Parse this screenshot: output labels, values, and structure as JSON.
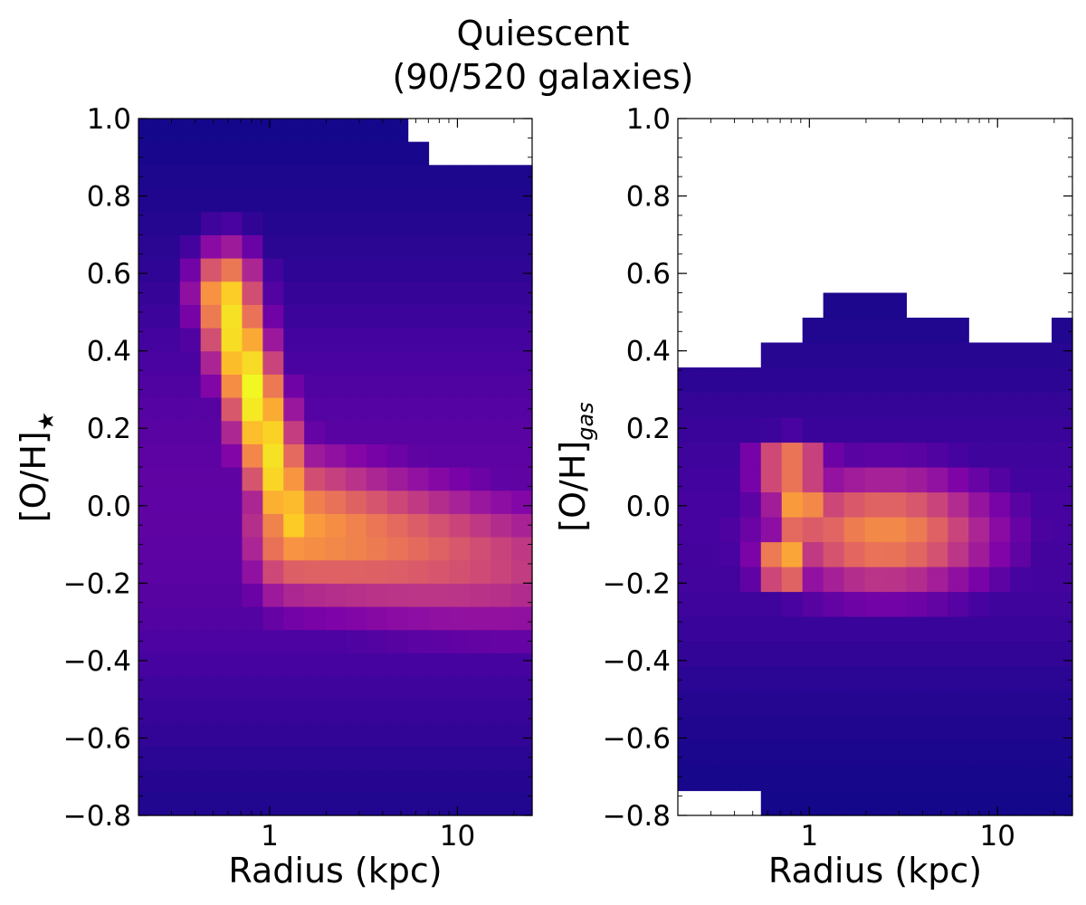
{
  "figure": {
    "title_line1": "Quiescent",
    "title_line2": "(90/520 galaxies)"
  },
  "chart_data": [
    {
      "type": "heatmap",
      "xlabel": "Radius (kpc)",
      "ylabel": "[O/H]",
      "ylabel_subscript": "★",
      "xscale": "log",
      "xlim": [
        0.2,
        25
      ],
      "ylim": [
        -0.8,
        1.0
      ],
      "x_ticks": [
        {
          "value": 1,
          "label": "1"
        },
        {
          "value": 10,
          "label": "10"
        }
      ],
      "y_ticks": [
        {
          "value": -0.8,
          "label": "−0.8"
        },
        {
          "value": -0.6,
          "label": "−0.6"
        },
        {
          "value": -0.4,
          "label": "−0.4"
        },
        {
          "value": -0.2,
          "label": "−0.2"
        },
        {
          "value": 0.0,
          "label": "0.0"
        },
        {
          "value": 0.2,
          "label": "0.2"
        },
        {
          "value": 0.4,
          "label": "0.4"
        },
        {
          "value": 0.6,
          "label": "0.6"
        },
        {
          "value": 0.8,
          "label": "0.8"
        },
        {
          "value": 1.0,
          "label": "1.0"
        }
      ],
      "colormap": "plasma",
      "grid": false,
      "n_x_bins": 19,
      "n_y_bins": 30,
      "ridge": {
        "r0": 0.59,
        "z0": 0.38,
        "sigma_z_inner": 0.1,
        "r_knee": 1.3,
        "z_knee": -0.05,
        "r_tail": 20,
        "z_tail": -0.15,
        "sigma_z_outer": 0.15,
        "log_sigma_r": 0.3
      },
      "empty_bins": [
        {
          "x_range": [
            7.5,
            25
          ],
          "y_range": [
            0.88,
            1.0
          ]
        },
        {
          "x_range": [
            5.9,
            7.5
          ],
          "y_range": [
            0.94,
            1.0
          ]
        }
      ]
    },
    {
      "type": "heatmap",
      "xlabel": "Radius (kpc)",
      "ylabel": "[O/H]",
      "ylabel_subscript": "gas",
      "xscale": "log",
      "xlim": [
        0.2,
        25
      ],
      "ylim": [
        -0.8,
        1.0
      ],
      "x_ticks": [
        {
          "value": 1,
          "label": "1"
        },
        {
          "value": 10,
          "label": "10"
        }
      ],
      "y_ticks": [
        {
          "value": -0.8,
          "label": "−0.8"
        },
        {
          "value": -0.6,
          "label": "−0.6"
        },
        {
          "value": -0.4,
          "label": "−0.4"
        },
        {
          "value": -0.2,
          "label": "−0.2"
        },
        {
          "value": 0.0,
          "label": "0.0"
        },
        {
          "value": 0.2,
          "label": "0.2"
        },
        {
          "value": 0.4,
          "label": "0.4"
        },
        {
          "value": 0.6,
          "label": "0.6"
        },
        {
          "value": 0.8,
          "label": "0.8"
        },
        {
          "value": 1.0,
          "label": "1.0"
        }
      ],
      "colormap": "plasma",
      "grid": false,
      "n_x_bins": 19,
      "n_y_bins": 28,
      "blobs": [
        {
          "r": 0.75,
          "z": -0.15,
          "sr": 0.12,
          "sz": 0.04,
          "w": 1.0
        },
        {
          "r": 0.9,
          "z": -0.02,
          "sr": 0.12,
          "sz": 0.05,
          "w": 0.92
        },
        {
          "r": 0.8,
          "z": 0.1,
          "sr": 0.15,
          "sz": 0.05,
          "w": 0.8
        },
        {
          "r": 2.5,
          "z": -0.07,
          "sr": 0.45,
          "sz": 0.12,
          "w": 0.72
        }
      ],
      "occupied_upper_edge": [
        {
          "x_range": [
            0.2,
            0.55
          ],
          "y_max": 0.38
        },
        {
          "x_range": [
            0.55,
            0.85
          ],
          "y_max": 0.44
        },
        {
          "x_range": [
            0.85,
            1.1
          ],
          "y_max": 0.5
        },
        {
          "x_range": [
            1.1,
            3.5
          ],
          "y_max": 0.56
        },
        {
          "x_range": [
            3.5,
            7.5
          ],
          "y_max": 0.5
        },
        {
          "x_range": [
            7.5,
            20
          ],
          "y_max": 0.44
        },
        {
          "x_range": [
            20,
            25
          ],
          "y_max": 0.5
        }
      ],
      "empty_bins": [
        {
          "x_range": [
            0.2,
            0.55
          ],
          "y_range": [
            -0.8,
            -0.74
          ]
        }
      ]
    }
  ]
}
